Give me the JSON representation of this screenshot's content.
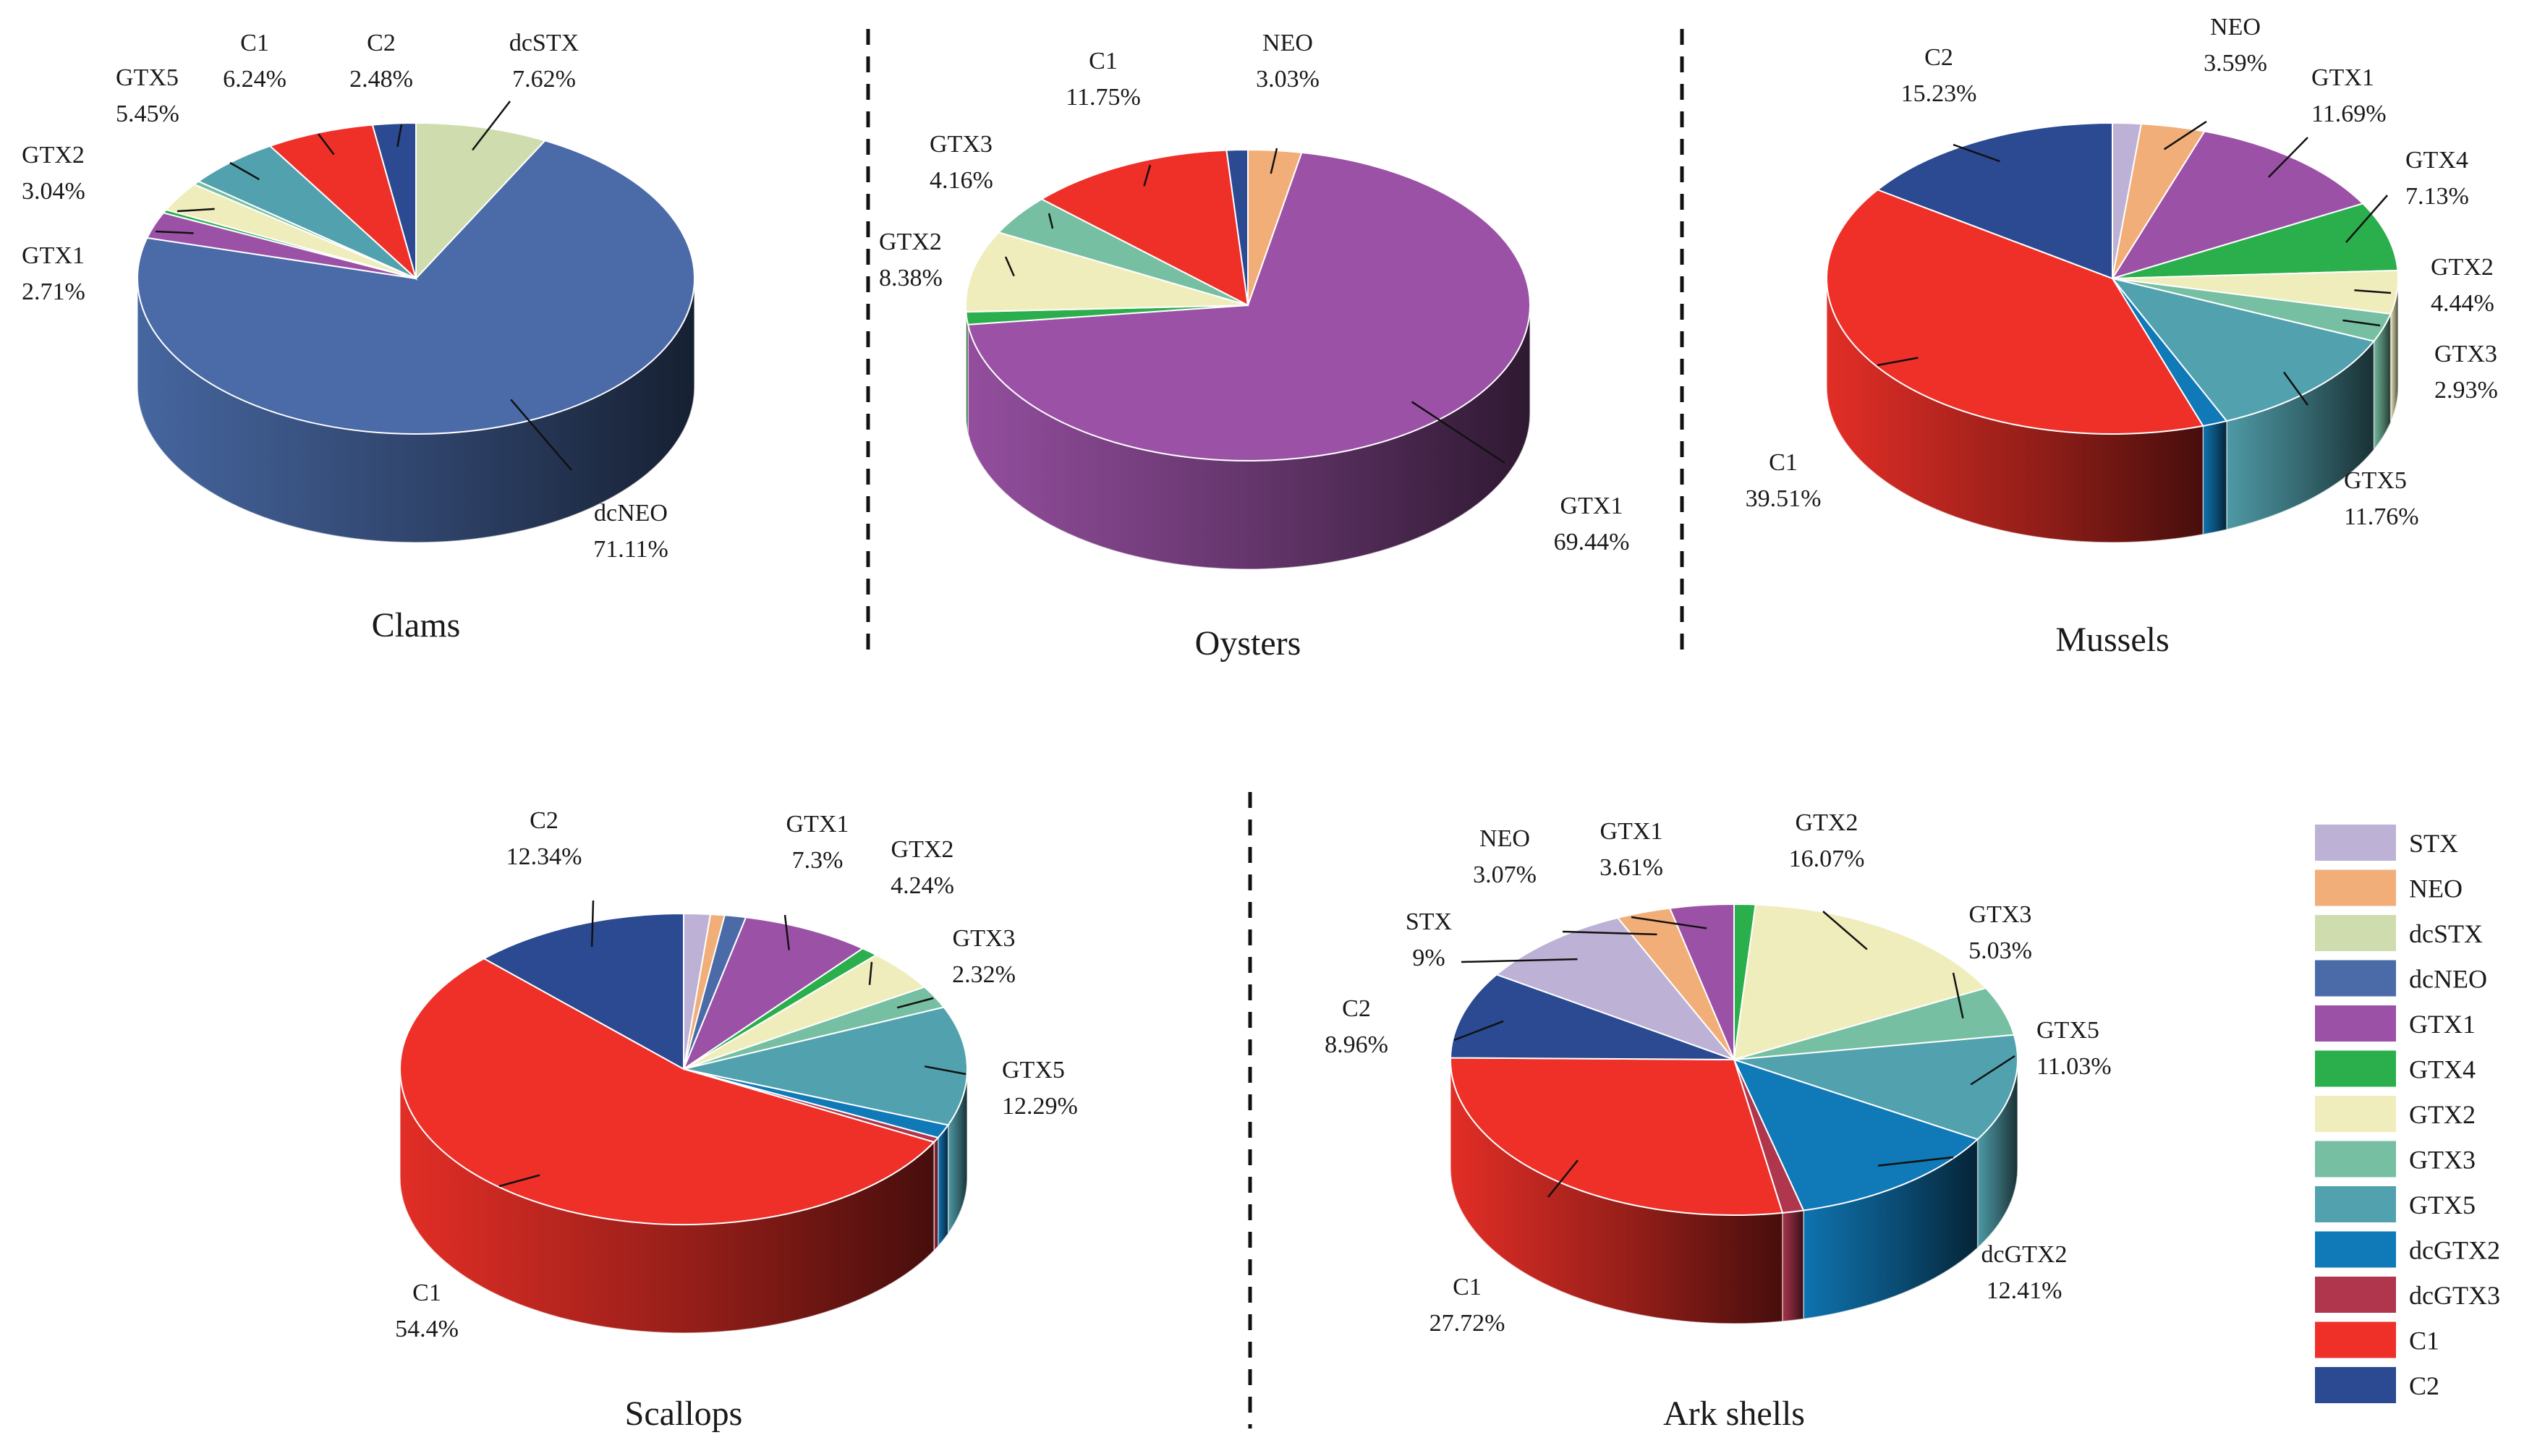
{
  "colors": {
    "STX": "#BDB2D6",
    "NEO": "#F2AE78",
    "dcSTX": "#CFDCAE",
    "dcNEO": "#4A6BA8",
    "GTX1": "#9B52A6",
    "GTX4": "#2BAE4C",
    "GTX2": "#F0EDBC",
    "GTX3": "#76BFA3",
    "GTX5": "#52A1AE",
    "dcGTX2": "#1079B8",
    "dcGTX3": "#B0364E",
    "C1": "#EE3028",
    "C2": "#2B4A92"
  },
  "legend": [
    "STX",
    "NEO",
    "dcSTX",
    "dcNEO",
    "GTX1",
    "GTX4",
    "GTX2",
    "GTX3",
    "GTX5",
    "dcGTX2",
    "dcGTX3",
    "C1",
    "C2"
  ],
  "chart_data": [
    {
      "type": "pie",
      "title": "Clams",
      "slices": [
        {
          "name": "dcSTX",
          "value": 7.62,
          "label": "dcSTX",
          "pct": "7.62%"
        },
        {
          "name": "dcNEO",
          "value": 71.11,
          "label": "dcNEO",
          "pct": "71.11%"
        },
        {
          "name": "GTX1",
          "value": 2.71,
          "label": "GTX1",
          "pct": "2.71%"
        },
        {
          "name": "GTX4",
          "value": 0.35
        },
        {
          "name": "GTX2",
          "value": 3.04,
          "label": "GTX2",
          "pct": "3.04%"
        },
        {
          "name": "GTX3",
          "value": 0.4
        },
        {
          "name": "GTX5",
          "value": 5.45,
          "label": "GTX5",
          "pct": "5.45%"
        },
        {
          "name": "C1",
          "value": 6.24,
          "label": "C1",
          "pct": "6.24%"
        },
        {
          "name": "C2",
          "value": 2.48,
          "label": "C2",
          "pct": "2.48%"
        }
      ]
    },
    {
      "type": "pie",
      "title": "Oysters",
      "slices": [
        {
          "name": "NEO",
          "value": 3.03,
          "label": "NEO",
          "pct": "3.03%"
        },
        {
          "name": "GTX1",
          "value": 69.44,
          "label": "GTX1",
          "pct": "69.44%"
        },
        {
          "name": "GTX4",
          "value": 1.3
        },
        {
          "name": "GTX2",
          "value": 8.38,
          "label": "GTX2",
          "pct": "8.38%"
        },
        {
          "name": "GTX3",
          "value": 4.16,
          "label": "GTX3",
          "pct": "4.16%"
        },
        {
          "name": "C1",
          "value": 11.75,
          "label": "C1",
          "pct": "11.75%"
        },
        {
          "name": "C2",
          "value": 1.2
        }
      ]
    },
    {
      "type": "pie",
      "title": "Mussels",
      "slices": [
        {
          "name": "STX",
          "value": 1.6
        },
        {
          "name": "NEO",
          "value": 3.59,
          "label": "NEO",
          "pct": "3.59%"
        },
        {
          "name": "GTX1",
          "value": 11.69,
          "label": "GTX1",
          "pct": "11.69%"
        },
        {
          "name": "GTX4",
          "value": 7.13,
          "label": "GTX4",
          "pct": "7.13%"
        },
        {
          "name": "GTX2",
          "value": 4.44,
          "label": "GTX2",
          "pct": "4.44%"
        },
        {
          "name": "GTX3",
          "value": 2.93,
          "label": "GTX3",
          "pct": "2.93%"
        },
        {
          "name": "GTX5",
          "value": 11.76,
          "label": "GTX5",
          "pct": "11.76%"
        },
        {
          "name": "dcGTX2",
          "value": 1.4
        },
        {
          "name": "C1",
          "value": 39.51,
          "label": "C1",
          "pct": "39.51%"
        },
        {
          "name": "C2",
          "value": 15.23,
          "label": "C2",
          "pct": "15.23%"
        }
      ]
    },
    {
      "type": "pie",
      "title": "Scallops",
      "slices": [
        {
          "name": "STX",
          "value": 1.5
        },
        {
          "name": "NEO",
          "value": 0.8
        },
        {
          "name": "dcNEO",
          "value": 1.2
        },
        {
          "name": "GTX1",
          "value": 7.3,
          "label": "GTX1",
          "pct": "7.3%"
        },
        {
          "name": "GTX4",
          "value": 1.0
        },
        {
          "name": "GTX2",
          "value": 4.24,
          "label": "GTX2",
          "pct": "4.24%"
        },
        {
          "name": "GTX3",
          "value": 2.32,
          "label": "GTX3",
          "pct": "2.32%"
        },
        {
          "name": "GTX5",
          "value": 12.29,
          "label": "GTX5",
          "pct": "12.29%"
        },
        {
          "name": "dcGTX2",
          "value": 1.4
        },
        {
          "name": "dcGTX3",
          "value": 0.5
        },
        {
          "name": "C1",
          "value": 54.4,
          "label": "C1",
          "pct": "54.4%"
        },
        {
          "name": "C2",
          "value": 12.34,
          "label": "C2",
          "pct": "12.34%"
        }
      ]
    },
    {
      "type": "pie",
      "title": "Ark shells",
      "slices": [
        {
          "name": "GTX4",
          "value": 1.2
        },
        {
          "name": "GTX2",
          "value": 16.07,
          "label": "GTX2",
          "pct": "16.07%"
        },
        {
          "name": "GTX3",
          "value": 5.03,
          "label": "GTX3",
          "pct": "5.03%"
        },
        {
          "name": "GTX5",
          "value": 11.03,
          "label": "GTX5",
          "pct": "11.03%"
        },
        {
          "name": "dcGTX2",
          "value": 12.41,
          "label": "dcGTX2",
          "pct": "12.41%"
        },
        {
          "name": "dcGTX3",
          "value": 1.2
        },
        {
          "name": "C1",
          "value": 27.72,
          "label": "C1",
          "pct": "27.72%"
        },
        {
          "name": "C2",
          "value": 8.96,
          "label": "C2",
          "pct": "8.96%"
        },
        {
          "name": "STX",
          "value": 9,
          "label": "STX",
          "pct": "9%"
        },
        {
          "name": "NEO",
          "value": 3.07,
          "label": "NEO",
          "pct": "3.07%"
        },
        {
          "name": "GTX1",
          "value": 3.61,
          "label": "GTX1",
          "pct": "3.61%"
        }
      ]
    }
  ]
}
